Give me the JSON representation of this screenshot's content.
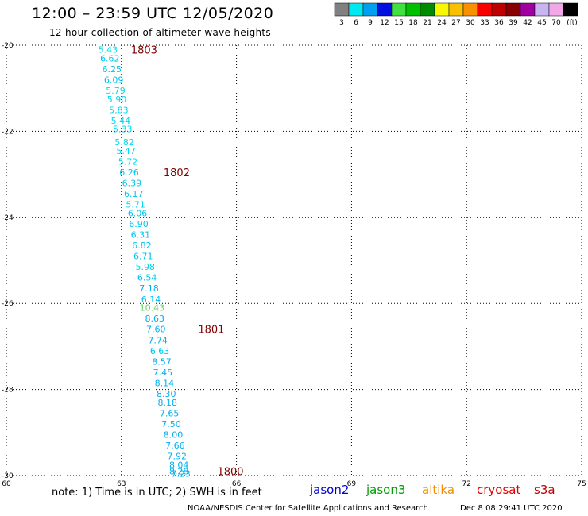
{
  "header": {
    "title": "12:00 – 23:59 UTC 12/05/2020",
    "subtitle": "12 hour collection of altimeter wave heights"
  },
  "colorbar": {
    "bins": [
      {
        "label": "3",
        "color": "#808080"
      },
      {
        "label": "6",
        "color": "#00e8f0"
      },
      {
        "label": "9",
        "color": "#00a0f0"
      },
      {
        "label": "12",
        "color": "#0010e0"
      },
      {
        "label": "15",
        "color": "#40e040"
      },
      {
        "label": "18",
        "color": "#00c000"
      },
      {
        "label": "21",
        "color": "#008c00"
      },
      {
        "label": "24",
        "color": "#f8f800"
      },
      {
        "label": "27",
        "color": "#f8c000"
      },
      {
        "label": "30",
        "color": "#f89000"
      },
      {
        "label": "33",
        "color": "#f80000"
      },
      {
        "label": "36",
        "color": "#c00000"
      },
      {
        "label": "39",
        "color": "#880000"
      },
      {
        "label": "42",
        "color": "#a000a0"
      },
      {
        "label": "45",
        "color": "#c8b4f0"
      },
      {
        "label": "70",
        "color": "#f0a8e8"
      },
      {
        "label": "(ft)",
        "color": "#000000"
      }
    ]
  },
  "chart_data": {
    "type": "scatter",
    "xlim": [
      60,
      75
    ],
    "ylim": [
      -30,
      -20
    ],
    "x_ticks": [
      "60",
      "63",
      "66",
      "69",
      "72",
      "75"
    ],
    "y_ticks": [
      "-20",
      "-22",
      "-24",
      "-26",
      "-28",
      "-30"
    ],
    "grid": true,
    "points": [
      {
        "lon": 62.65,
        "lat": -20.1,
        "value": "5.43",
        "color": "#00d8f0"
      },
      {
        "lon": 62.7,
        "lat": -20.3,
        "value": "6.62",
        "color": "#00c4f0"
      },
      {
        "lon": 62.75,
        "lat": -20.55,
        "value": "6.25",
        "color": "#00c4f0"
      },
      {
        "lon": 62.8,
        "lat": -20.8,
        "value": "6.09",
        "color": "#00c4f0"
      },
      {
        "lon": 62.85,
        "lat": -21.05,
        "value": "5.79",
        "color": "#00d8f0"
      },
      {
        "lon": 62.88,
        "lat": -21.25,
        "value": "5.90",
        "color": "#00d8f0"
      },
      {
        "lon": 62.93,
        "lat": -21.5,
        "value": "5.83",
        "color": "#00d8f0"
      },
      {
        "lon": 62.98,
        "lat": -21.75,
        "value": "5.44",
        "color": "#00d8f0"
      },
      {
        "lon": 63.03,
        "lat": -21.95,
        "value": "5.33",
        "color": "#00d8f0"
      },
      {
        "lon": 63.08,
        "lat": -22.25,
        "value": "5.82",
        "color": "#00d8f0"
      },
      {
        "lon": 63.12,
        "lat": -22.45,
        "value": "5.47",
        "color": "#00d8f0"
      },
      {
        "lon": 63.17,
        "lat": -22.7,
        "value": "5.72",
        "color": "#00d8f0"
      },
      {
        "lon": 63.2,
        "lat": -22.95,
        "value": "6.26",
        "color": "#00c4f0"
      },
      {
        "lon": 63.27,
        "lat": -23.2,
        "value": "6.39",
        "color": "#00c4f0"
      },
      {
        "lon": 63.32,
        "lat": -23.45,
        "value": "6.17",
        "color": "#00c4f0"
      },
      {
        "lon": 63.37,
        "lat": -23.7,
        "value": "5.71",
        "color": "#00d8f0"
      },
      {
        "lon": 63.42,
        "lat": -23.9,
        "value": "6.06",
        "color": "#00c4f0"
      },
      {
        "lon": 63.45,
        "lat": -24.15,
        "value": "6.90",
        "color": "#00c4f0"
      },
      {
        "lon": 63.5,
        "lat": -24.4,
        "value": "6.31",
        "color": "#00c4f0"
      },
      {
        "lon": 63.53,
        "lat": -24.65,
        "value": "6.82",
        "color": "#00c4f0"
      },
      {
        "lon": 63.57,
        "lat": -24.9,
        "value": "6.71",
        "color": "#00c4f0"
      },
      {
        "lon": 63.62,
        "lat": -25.15,
        "value": "5.98",
        "color": "#00d8f0"
      },
      {
        "lon": 63.67,
        "lat": -25.4,
        "value": "6.54",
        "color": "#00c4f0"
      },
      {
        "lon": 63.72,
        "lat": -25.65,
        "value": "7.18",
        "color": "#00b0f0"
      },
      {
        "lon": 63.77,
        "lat": -25.9,
        "value": "6.14",
        "color": "#00c4f0"
      },
      {
        "lon": 63.8,
        "lat": -26.1,
        "value": "10.43",
        "color": "#58d858"
      },
      {
        "lon": 63.87,
        "lat": -26.35,
        "value": "8.63",
        "color": "#00b0f0"
      },
      {
        "lon": 63.9,
        "lat": -26.6,
        "value": "7.60",
        "color": "#00b0f0"
      },
      {
        "lon": 63.95,
        "lat": -26.85,
        "value": "7.74",
        "color": "#00b0f0"
      },
      {
        "lon": 64.0,
        "lat": -27.1,
        "value": "6.63",
        "color": "#00c4f0"
      },
      {
        "lon": 64.05,
        "lat": -27.35,
        "value": "8.57",
        "color": "#00b0f0"
      },
      {
        "lon": 64.08,
        "lat": -27.6,
        "value": "7.45",
        "color": "#00b0f0"
      },
      {
        "lon": 64.12,
        "lat": -27.85,
        "value": "8.14",
        "color": "#00b0f0"
      },
      {
        "lon": 64.17,
        "lat": -28.1,
        "value": "8.30",
        "color": "#00b0f0"
      },
      {
        "lon": 64.2,
        "lat": -28.3,
        "value": "8.18",
        "color": "#00b0f0"
      },
      {
        "lon": 64.25,
        "lat": -28.55,
        "value": "7.65",
        "color": "#00b0f0"
      },
      {
        "lon": 64.3,
        "lat": -28.8,
        "value": "7.50",
        "color": "#00b0f0"
      },
      {
        "lon": 64.35,
        "lat": -29.05,
        "value": "8.00",
        "color": "#00b0f0"
      },
      {
        "lon": 64.4,
        "lat": -29.3,
        "value": "7.66",
        "color": "#00b0f0"
      },
      {
        "lon": 64.45,
        "lat": -29.55,
        "value": "7.92",
        "color": "#00b0f0"
      },
      {
        "lon": 64.5,
        "lat": -29.75,
        "value": "8.04",
        "color": "#00b0f0"
      },
      {
        "lon": 64.55,
        "lat": -29.95,
        "value": "7.23",
        "color": "#00b0f0"
      },
      {
        "lon": 64.5,
        "lat": -29.9,
        "value": "8.28",
        "color": "#00b0f0"
      }
    ],
    "time_labels": [
      {
        "lon": 63.25,
        "lat": -20.1,
        "text": "1803"
      },
      {
        "lon": 64.1,
        "lat": -22.95,
        "text": "1802"
      },
      {
        "lon": 65.0,
        "lat": -26.6,
        "text": "1801"
      },
      {
        "lon": 65.5,
        "lat": -29.9,
        "text": "1800"
      }
    ],
    "time_label_color": "#800000"
  },
  "footer": {
    "note": "note:  1) Time is in UTC;  2) SWH is in feet",
    "satellites": [
      {
        "name": "jason2",
        "color": "#0000d0"
      },
      {
        "name": "jason3",
        "color": "#00a000"
      },
      {
        "name": "altika",
        "color": "#f09000"
      },
      {
        "name": "cryosat",
        "color": "#e00000"
      },
      {
        "name": "s3a",
        "color": "#c00000"
      }
    ],
    "credit": "NOAA/NESDIS Center for Satellite Applications and Research",
    "timestamp": "Dec  8 08:29:41 UTC 2020"
  }
}
